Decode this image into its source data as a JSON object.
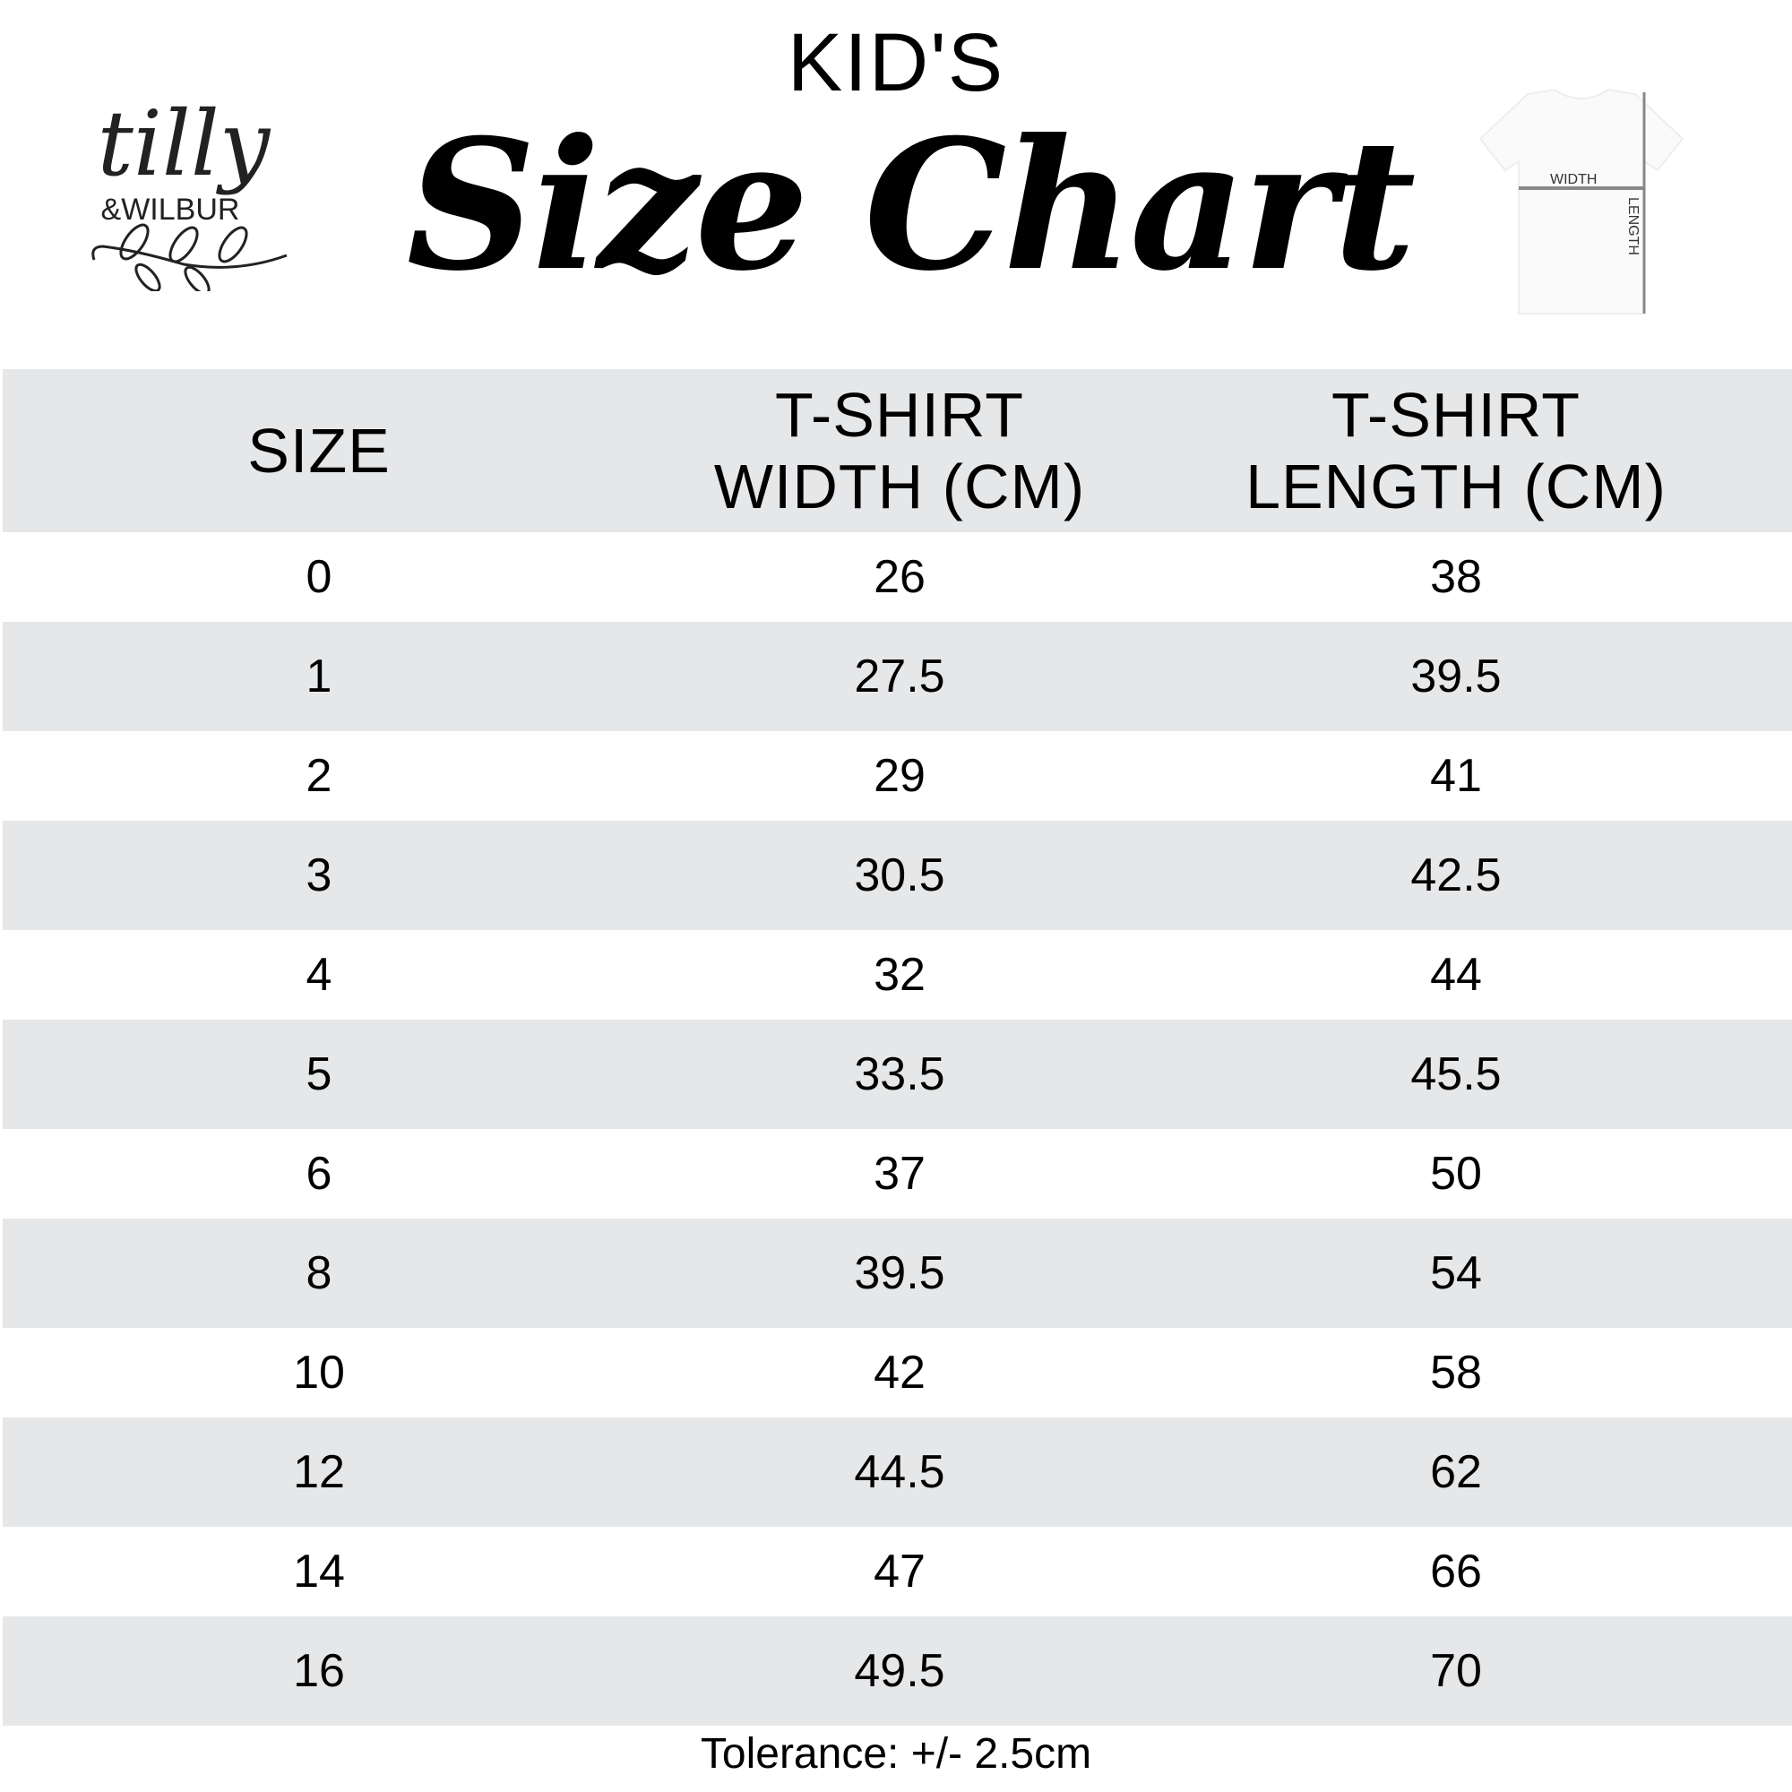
{
  "header": {
    "kicker": "KID'S",
    "title": "Size Chart"
  },
  "logo": {
    "line1": "tilly",
    "line2": "&WILBUR"
  },
  "diagram": {
    "width_label": "WIDTH",
    "length_label": "LENGTH"
  },
  "table": {
    "columns": [
      "SIZE",
      "T-SHIRT WIDTH (CM)",
      "T-SHIRT LENGTH (CM)"
    ],
    "col1_line1": "T-SHIRT",
    "col1_line2": "WIDTH (CM)",
    "col2_line1": "T-SHIRT",
    "col2_line2": "LENGTH (CM)",
    "rows": [
      [
        "0",
        "26",
        "38"
      ],
      [
        "1",
        "27.5",
        "39.5"
      ],
      [
        "2",
        "29",
        "41"
      ],
      [
        "3",
        "30.5",
        "42.5"
      ],
      [
        "4",
        "32",
        "44"
      ],
      [
        "5",
        "33.5",
        "45.5"
      ],
      [
        "6",
        "37",
        "50"
      ],
      [
        "8",
        "39.5",
        "54"
      ],
      [
        "10",
        "42",
        "58"
      ],
      [
        "12",
        "44.5",
        "62"
      ],
      [
        "14",
        "47",
        "66"
      ],
      [
        "16",
        "49.5",
        "70"
      ]
    ]
  },
  "footer": {
    "tolerance": "Tolerance: +/- 2.5cm"
  },
  "colors": {
    "row_alt": "#e6e7e9",
    "text": "#000000"
  }
}
